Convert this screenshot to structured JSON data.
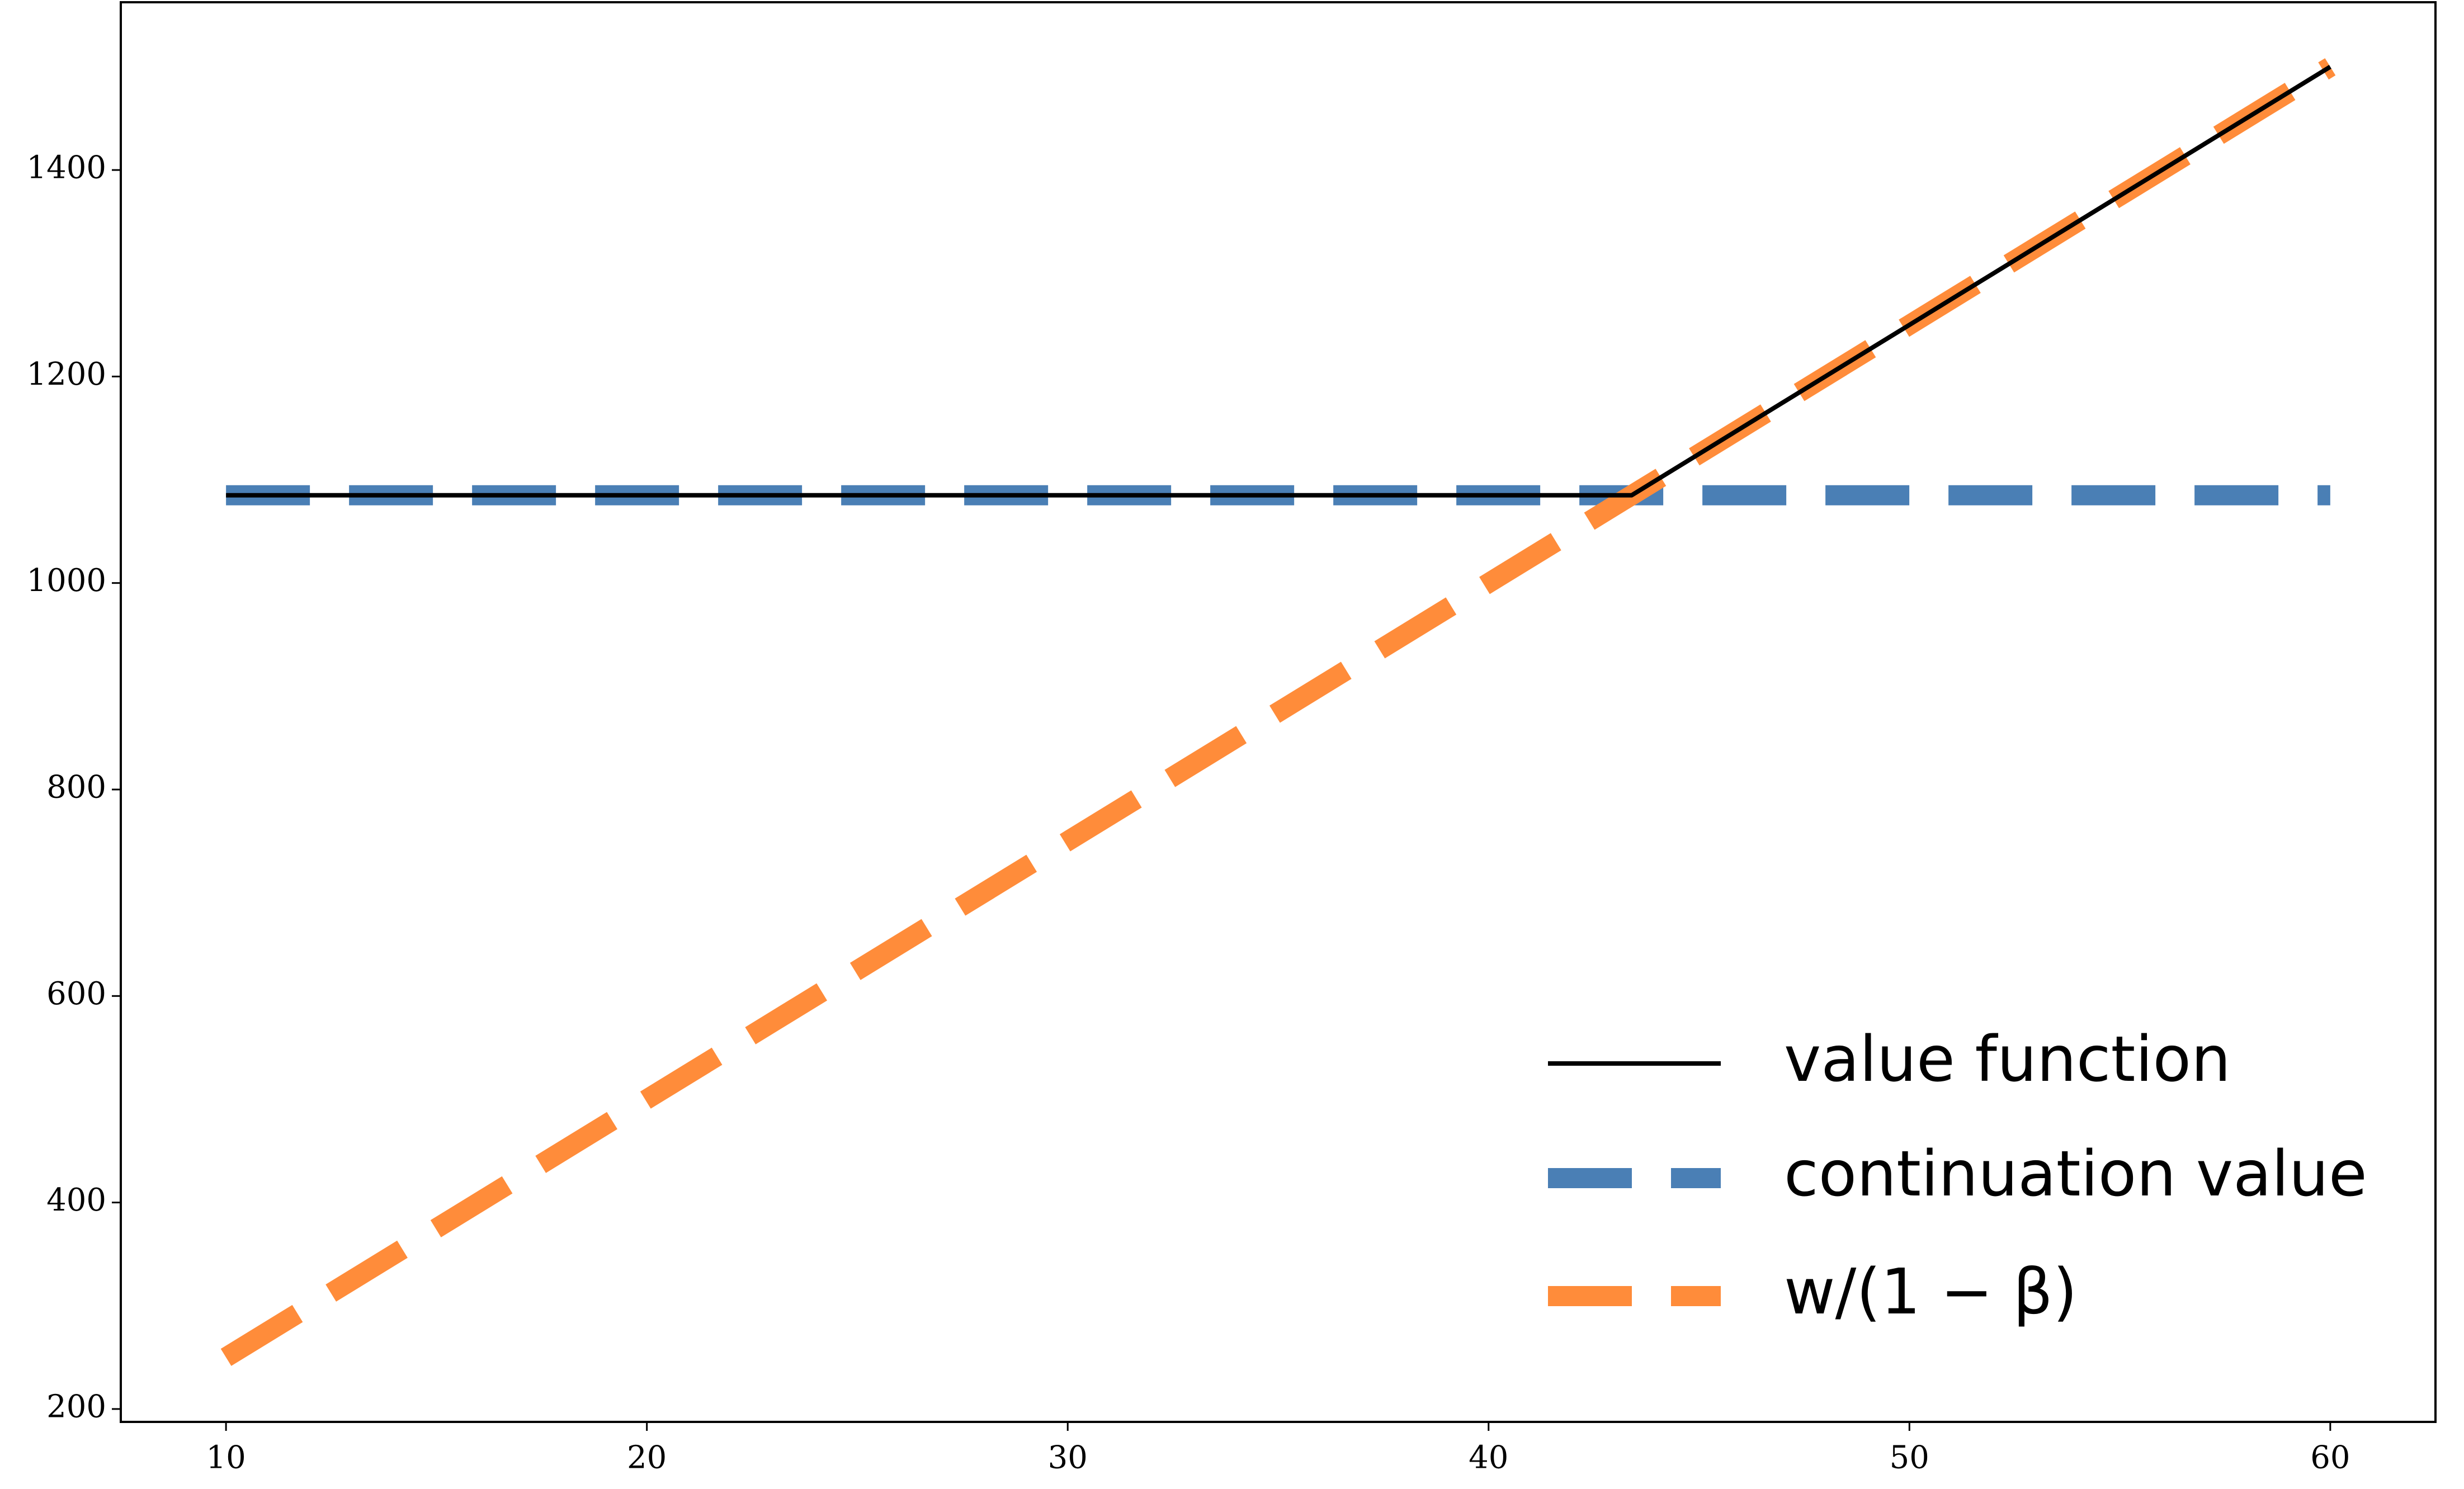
{
  "chart_data": {
    "type": "line",
    "x": [
      10,
      20,
      30,
      40,
      43.4,
      50,
      60
    ],
    "series": [
      {
        "name": "value function",
        "color": "#000000",
        "linestyle": "solid",
        "values": [
          1085,
          1085,
          1085,
          1085,
          1085,
          1250,
          1500
        ]
      },
      {
        "name": "continuation value",
        "color": "#4a7fb5",
        "linestyle": "dashed",
        "values": [
          1085,
          1085,
          1085,
          1085,
          1085,
          1085,
          1085
        ]
      },
      {
        "name": "w/(1 − β)",
        "color": "#ff8c3a",
        "linestyle": "dashed",
        "values": [
          250,
          500,
          750,
          1000,
          1085,
          1250,
          1500
        ]
      }
    ],
    "xlim": [
      7.5,
      62.5
    ],
    "ylim": [
      187.5,
      1562.5
    ],
    "xticks": [
      10,
      20,
      30,
      40,
      50,
      60
    ],
    "yticks": [
      200,
      400,
      600,
      800,
      1000,
      1200,
      1400
    ],
    "grid": false,
    "legend": "lower right"
  }
}
